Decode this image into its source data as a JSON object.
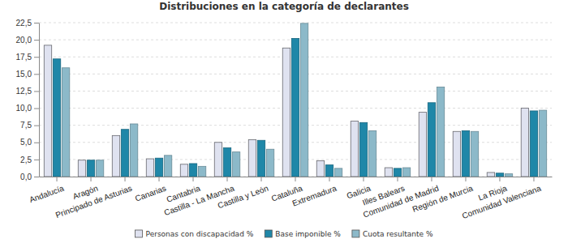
{
  "chart_data": {
    "type": "bar",
    "title": "Distribuciones en la categoría de declarantes",
    "categories": [
      "Andalucía",
      "Aragón",
      "Principado de Asturias",
      "Canarias",
      "Cantabria",
      "Castilla - La Mancha",
      "Castilla y León",
      "Cataluña",
      "Extremadura",
      "Galicia",
      "Illes Balears",
      "Comunidad de Madrid",
      "Región de Murcia",
      "La Rioja",
      "Comunidad Valenciana"
    ],
    "series": [
      {
        "name": "Personas con discapacidad %",
        "color": "#dfe2f0",
        "values": [
          19.2,
          2.4,
          6.0,
          2.6,
          1.8,
          5.0,
          5.4,
          18.8,
          2.3,
          8.1,
          1.3,
          9.4,
          6.6,
          0.6,
          10.0
        ]
      },
      {
        "name": "Base imponible %",
        "color": "#1f87a8",
        "values": [
          17.2,
          2.4,
          6.9,
          2.7,
          1.9,
          4.2,
          5.3,
          20.2,
          1.7,
          7.9,
          1.2,
          10.8,
          6.7,
          0.5,
          9.6
        ]
      },
      {
        "name": "Cuota resultante %",
        "color": "#8cb9c9",
        "values": [
          15.9,
          2.4,
          7.7,
          3.1,
          1.5,
          3.6,
          4.0,
          22.4,
          1.2,
          6.7,
          1.3,
          13.1,
          6.6,
          0.4,
          9.7
        ]
      }
    ],
    "ylim": [
      0,
      22.5
    ],
    "yticks": [
      {
        "value": 0,
        "label": "0,0"
      },
      {
        "value": 2.5,
        "label": "2,5"
      },
      {
        "value": 5,
        "label": "5,0"
      },
      {
        "value": 7.5,
        "label": "7,5"
      },
      {
        "value": 10,
        "label": "10,0"
      },
      {
        "value": 12.5,
        "label": "12,5"
      },
      {
        "value": 15,
        "label": "15,0"
      },
      {
        "value": 17.5,
        "label": "17,5"
      },
      {
        "value": 20,
        "label": "20,0"
      },
      {
        "value": 22.5,
        "label": "22,5"
      }
    ],
    "grid": true,
    "legend": "bottom"
  }
}
